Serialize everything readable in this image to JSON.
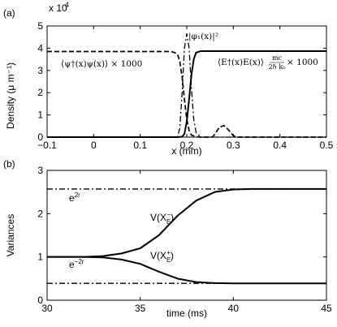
{
  "chart_data": [
    {
      "panel_label": "(a)",
      "type": "line",
      "xlabel": "x (mm)",
      "ylabel": "Density (μ m⁻¹)",
      "xlim": [
        -0.1,
        0.5
      ],
      "ylim": [
        0,
        50000
      ],
      "x_ticks": [
        "−0.1",
        "0",
        "0.1",
        "0.2",
        "0.3",
        "0.4",
        "0.5"
      ],
      "y_ticks": [
        "0",
        "1",
        "2",
        "3",
        "4",
        "5"
      ],
      "y_exponent_base": "x 10",
      "y_exponent_power": "4",
      "annotations": {
        "atoms": "⟨ψ†(x)ψ(x)⟩ × 1000",
        "mode": "|φ₁(x)|²",
        "light_main": "⟨E†(x)E(x)⟩",
        "light_frac_num": "mc",
        "light_frac_den": "2ℏ k₀",
        "light_tail": "× 1000"
      },
      "series": [
        {
          "style": "dashed",
          "points": [
            [
              -0.1,
              38500
            ],
            [
              0.16,
              38500
            ],
            [
              0.17,
              38300
            ],
            [
              0.18,
              37500
            ],
            [
              0.185,
              34000
            ],
            [
              0.19,
              27000
            ],
            [
              0.195,
              17000
            ],
            [
              0.2,
              8000
            ],
            [
              0.205,
              3000
            ],
            [
              0.21,
              900
            ],
            [
              0.22,
              150
            ],
            [
              0.23,
              0
            ],
            [
              0.255,
              0
            ],
            [
              0.26,
              1200
            ],
            [
              0.27,
              4500
            ],
            [
              0.28,
              5200
            ],
            [
              0.29,
              3200
            ],
            [
              0.3,
              600
            ],
            [
              0.31,
              0
            ],
            [
              0.5,
              0
            ]
          ]
        },
        {
          "style": "solid",
          "points": [
            [
              -0.1,
              0
            ],
            [
              0.18,
              0
            ],
            [
              0.19,
              200
            ],
            [
              0.195,
              1500
            ],
            [
              0.2,
              7000
            ],
            [
              0.205,
              17000
            ],
            [
              0.21,
              28000
            ],
            [
              0.215,
              35000
            ],
            [
              0.22,
              38000
            ],
            [
              0.23,
              38700
            ],
            [
              0.5,
              38700
            ]
          ]
        },
        {
          "style": "dash-dot",
          "points": [
            [
              -0.1,
              0
            ],
            [
              0.18,
              0
            ],
            [
              0.185,
              4000
            ],
            [
              0.19,
              20000
            ],
            [
              0.195,
              40000
            ],
            [
              0.2,
              46500
            ],
            [
              0.205,
              40000
            ],
            [
              0.21,
              22000
            ],
            [
              0.215,
              8000
            ],
            [
              0.22,
              2000
            ],
            [
              0.23,
              0
            ],
            [
              0.5,
              0
            ]
          ]
        }
      ]
    },
    {
      "panel_label": "(b)",
      "type": "line",
      "xlabel": "time (ms)",
      "ylabel": "Variances",
      "xlim": [
        30,
        45
      ],
      "ylim": [
        0,
        3
      ],
      "x_ticks": [
        "30",
        "35",
        "40",
        "45"
      ],
      "y_ticks": [
        "0",
        "1",
        "2",
        "3"
      ],
      "annotations": {
        "e2r_base": "e",
        "e2r_exp": "2r",
        "em2r_base": "e",
        "em2r_exp": "−2r",
        "vminus_base": "V(X",
        "vminus_sub": "E",
        "vminus_sup": "−",
        "vminus_close": ")",
        "vplus_base": "V(X",
        "vplus_sub": "E",
        "vplus_sup": "+",
        "vplus_close": ")"
      },
      "series": [
        {
          "style": "solid",
          "points": [
            [
              30,
              1
            ],
            [
              32,
              1.0
            ],
            [
              33,
              1.02
            ],
            [
              34,
              1.08
            ],
            [
              35,
              1.2
            ],
            [
              36,
              1.5
            ],
            [
              37,
              1.95
            ],
            [
              38,
              2.3
            ],
            [
              39,
              2.5
            ],
            [
              40,
              2.56
            ],
            [
              41,
              2.57
            ],
            [
              45,
              2.57
            ]
          ]
        },
        {
          "style": "solid",
          "points": [
            [
              30,
              1
            ],
            [
              32,
              1.0
            ],
            [
              33,
              0.99
            ],
            [
              34,
              0.94
            ],
            [
              35,
              0.84
            ],
            [
              36,
              0.66
            ],
            [
              37,
              0.5
            ],
            [
              38,
              0.42
            ],
            [
              39,
              0.395
            ],
            [
              40,
              0.39
            ],
            [
              45,
              0.39
            ]
          ]
        },
        {
          "style": "dash-dot",
          "points": [
            [
              30,
              2.57
            ],
            [
              45,
              2.57
            ]
          ]
        },
        {
          "style": "dash-dot",
          "points": [
            [
              30,
              0.39
            ],
            [
              45,
              0.39
            ]
          ]
        }
      ]
    }
  ]
}
